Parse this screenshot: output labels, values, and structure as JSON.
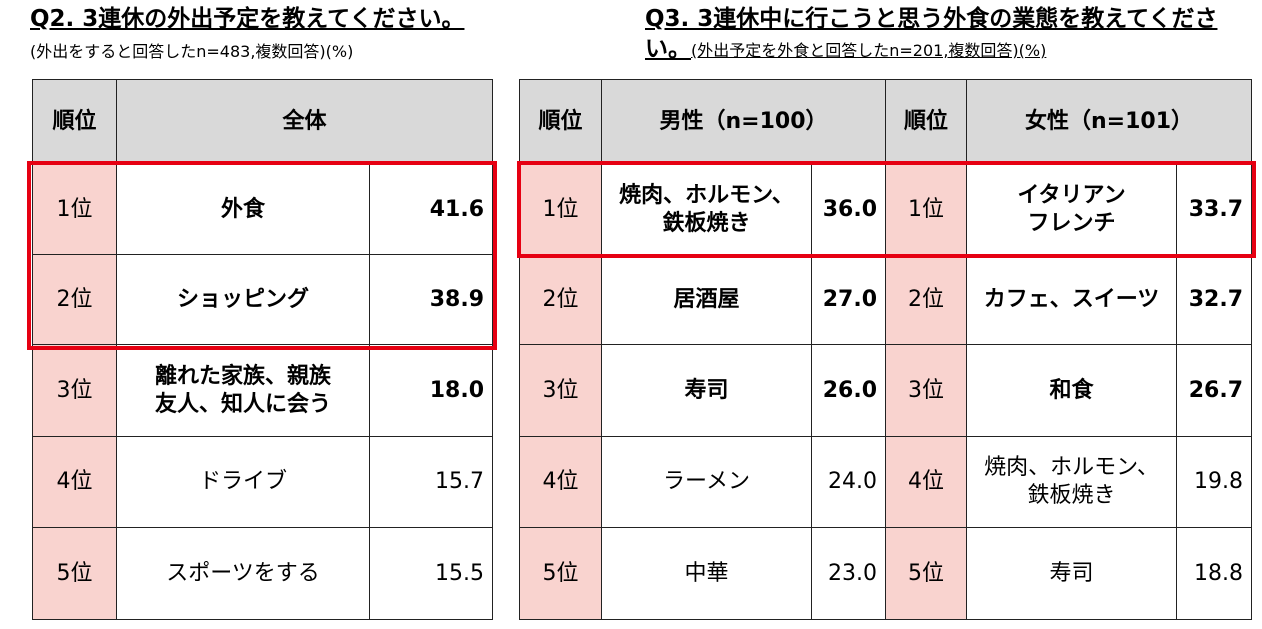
{
  "left": {
    "title": "Q2. 3連休の外出予定を教えてください。",
    "note": "(外出をすると回答したn=483,複数回答)(%)",
    "header": [
      "順位",
      "全体"
    ],
    "rows": [
      [
        "1位",
        "外食",
        "41.6"
      ],
      [
        "2位",
        "ショッピング",
        "38.9"
      ],
      [
        "3位",
        "離れた家族、親族\n友人、知人に会う",
        "18.0"
      ],
      [
        "4位",
        "ドライブ",
        "15.7"
      ],
      [
        "5位",
        "スポーツをする",
        "15.5"
      ]
    ]
  },
  "right": {
    "title": "Q3. 3連休中に行こうと思う外食の業態を教えてください。",
    "note": "(外出予定を外食と回答したn=201,複数回答)(%)",
    "header": [
      "順位",
      "男性（n=100）",
      "順位",
      "女性（n=101）"
    ],
    "rows": [
      [
        "1位",
        "焼肉、ホルモン、\n鉄板焼き",
        "36.0",
        "1位",
        "イタリアン\nフレンチ",
        "33.7"
      ],
      [
        "2位",
        "居酒屋",
        "27.0",
        "2位",
        "カフェ、スイーツ",
        "32.7"
      ],
      [
        "3位",
        "寿司",
        "26.0",
        "3位",
        "和食",
        "26.7"
      ],
      [
        "4位",
        "ラーメン",
        "24.0",
        "4位",
        "焼肉、ホルモン、\n鉄板焼き",
        "19.8"
      ],
      [
        "5位",
        "中華",
        "23.0",
        "5位",
        "寿司",
        "18.8"
      ]
    ]
  }
}
